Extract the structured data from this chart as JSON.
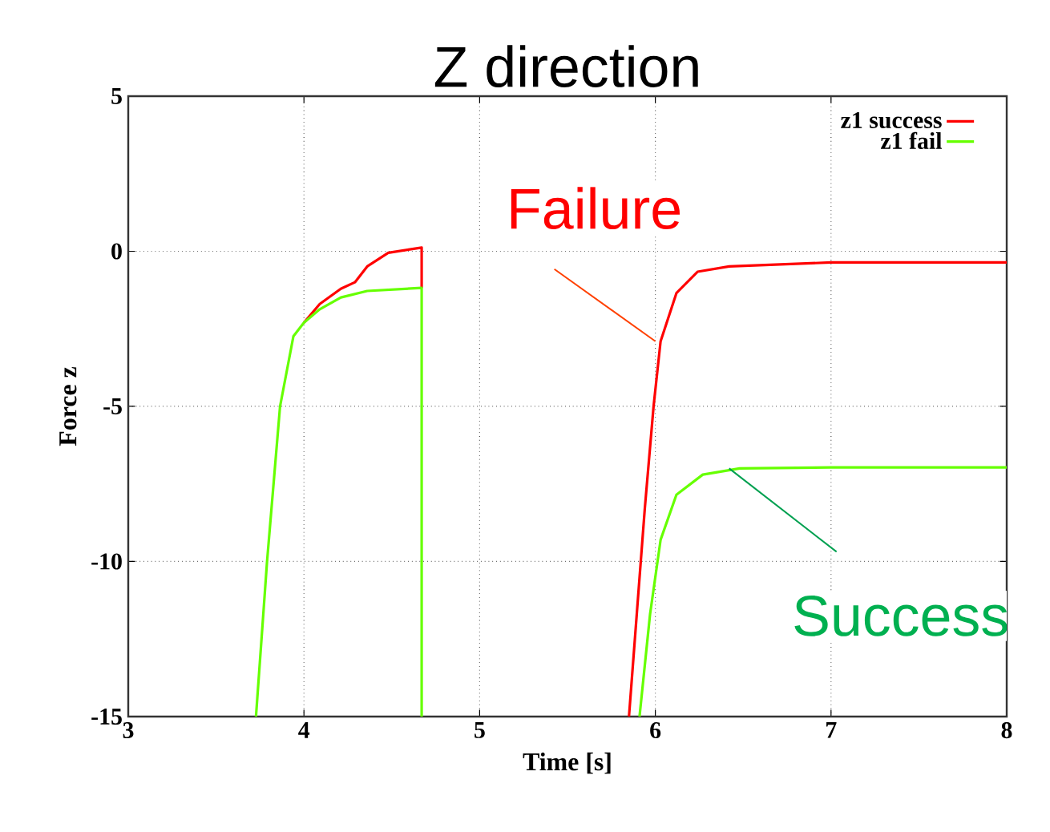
{
  "chart_data": {
    "type": "line",
    "title": "Z direction",
    "xlabel": "Time [s]",
    "ylabel": "Force z",
    "xlim": [
      3,
      8
    ],
    "ylim": [
      -15,
      5
    ],
    "xticks": [
      3,
      4,
      5,
      6,
      7,
      8
    ],
    "yticks": [
      -15,
      -10,
      -5,
      0,
      5
    ],
    "grid": true,
    "legend": "top right",
    "line_style": "solid",
    "marker": "none",
    "series": [
      {
        "name": "z1 success",
        "color": "#ff0000",
        "x": [
          4.0,
          4.09,
          4.21,
          4.29,
          4.36,
          4.48,
          4.67,
          4.67,
          5.2,
          5.85,
          5.94,
          5.99,
          6.03,
          6.12,
          6.24,
          6.42,
          7.0,
          8.0
        ],
        "values": [
          -2.3,
          -1.7,
          -1.21,
          -1.0,
          -0.49,
          -0.05,
          0.12,
          -1.18,
          null,
          -15,
          -8.3,
          -5,
          -2.9,
          -1.35,
          -0.66,
          -0.49,
          -0.36,
          -0.36
        ]
      },
      {
        "name": "z1 fail",
        "color": "#66ff00",
        "x": [
          3.727,
          3.79,
          3.864,
          3.94,
          4.0,
          4.09,
          4.21,
          4.36,
          4.67,
          4.67,
          5.2,
          5.91,
          5.97,
          6.03,
          6.12,
          6.27,
          6.48,
          7.0,
          8.0
        ],
        "values": [
          -15,
          -10,
          -5,
          -2.74,
          -2.3,
          -1.87,
          -1.49,
          -1.28,
          -1.18,
          -15,
          null,
          -15,
          -11.7,
          -9.3,
          -7.85,
          -7.2,
          -7.0,
          -6.97,
          -6.97
        ]
      }
    ],
    "annotations": [
      {
        "text": "Failure",
        "x": 6.0,
        "y": -2.9
      },
      {
        "text": "Success",
        "x": 6.42,
        "y": -7.0
      }
    ]
  }
}
